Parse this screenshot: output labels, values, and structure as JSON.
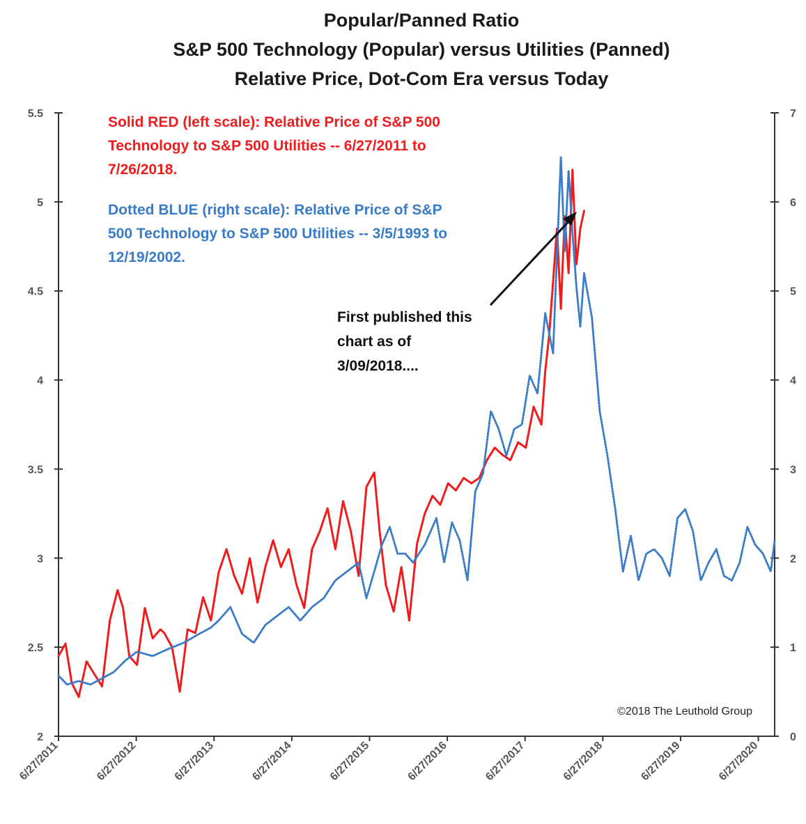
{
  "chart_data": {
    "type": "line",
    "title": [
      "Popular/Panned Ratio",
      "S&P 500 Technology (Popular) versus Utilities (Panned)",
      "Relative Price, Dot-Com Era versus Today"
    ],
    "y_left": {
      "ticks": [
        "5.5",
        "5",
        "4.5",
        "4",
        "3.5",
        "3",
        "2.5",
        "2"
      ],
      "ylim": [
        2,
        5.5
      ]
    },
    "y_right": {
      "ticks": [
        "7",
        "6",
        "5",
        "4",
        "3",
        "2",
        "1",
        "0"
      ],
      "ylim": [
        0,
        7
      ]
    },
    "x_ticks": [
      "6/27/2011",
      "6/27/2012",
      "6/27/2013",
      "6/27/2014",
      "6/27/2015",
      "6/27/2016",
      "6/27/2017",
      "6/27/2018",
      "6/27/2019",
      "6/27/2020"
    ],
    "xlim": [
      2011.49,
      2020.7
    ],
    "annotations": {
      "red_legend": [
        "Solid RED (left scale): Relative Price of S&P 500",
        "Technology to S&P 500 Utilities -- 6/27/2011 to",
        "7/26/2018."
      ],
      "blue_legend": [
        "Dotted BLUE (right scale): Relative Price of S&P",
        "500 Technology to S&P 500 Utilities -- 3/5/1993 to",
        "12/19/2002."
      ],
      "note": [
        "First published this",
        "chart as of",
        "3/09/2018...."
      ],
      "copyright": "©2018 The Leuthold Group"
    },
    "colors": {
      "red": "#ee1c1c",
      "blue": "#3a7bc8",
      "axis": "#333333"
    },
    "series": [
      {
        "style": "solid",
        "axis": "left",
        "color": "#ee1c1c",
        "x": [
          2011.49,
          2011.58,
          2011.66,
          2011.75,
          2011.85,
          2011.95,
          2012.05,
          2012.15,
          2012.25,
          2012.32,
          2012.4,
          2012.5,
          2012.6,
          2012.7,
          2012.8,
          2012.85,
          2012.95,
          2013.05,
          2013.15,
          2013.25,
          2013.35,
          2013.45,
          2013.55,
          2013.65,
          2013.75,
          2013.85,
          2013.95,
          2014.05,
          2014.15,
          2014.25,
          2014.35,
          2014.45,
          2014.55,
          2014.65,
          2014.75,
          2014.85,
          2014.95,
          2015.05,
          2015.15,
          2015.25,
          2015.35,
          2015.45,
          2015.55,
          2015.62,
          2015.7,
          2015.8,
          2015.9,
          2016.0,
          2016.1,
          2016.2,
          2016.3,
          2016.4,
          2016.5,
          2016.6,
          2016.7,
          2016.8,
          2016.9,
          2017.0,
          2017.1,
          2017.2,
          2017.3,
          2017.4,
          2017.5,
          2017.6,
          2017.7,
          2017.75,
          2017.8,
          2017.85,
          2017.9,
          2017.95,
          2018.0,
          2018.05,
          2018.1,
          2018.15,
          2018.2,
          2018.25
        ],
        "y": [
          2.45,
          2.52,
          2.3,
          2.22,
          2.42,
          2.35,
          2.28,
          2.65,
          2.82,
          2.72,
          2.45,
          2.4,
          2.72,
          2.55,
          2.6,
          2.58,
          2.5,
          2.25,
          2.6,
          2.58,
          2.78,
          2.65,
          2.92,
          3.05,
          2.9,
          2.8,
          3.0,
          2.75,
          2.95,
          3.1,
          2.95,
          3.05,
          2.85,
          2.72,
          3.05,
          3.15,
          3.28,
          3.05,
          3.32,
          3.15,
          2.9,
          3.4,
          3.48,
          3.15,
          2.85,
          2.7,
          2.95,
          2.65,
          3.08,
          3.25,
          3.35,
          3.3,
          3.42,
          3.38,
          3.45,
          3.42,
          3.45,
          3.55,
          3.62,
          3.58,
          3.55,
          3.65,
          3.62,
          3.85,
          3.75,
          4.05,
          4.25,
          4.55,
          4.85,
          4.4,
          4.92,
          4.6,
          5.18,
          4.65,
          4.85,
          4.95
        ]
      },
      {
        "style": "dotted",
        "axis": "right",
        "color": "#3a7bc8",
        "x": [
          2011.49,
          2011.6,
          2011.75,
          2011.9,
          2012.05,
          2012.2,
          2012.35,
          2012.5,
          2012.7,
          2012.9,
          2013.1,
          2013.3,
          2013.45,
          2013.55,
          2013.7,
          2013.85,
          2014.0,
          2014.15,
          2014.3,
          2014.45,
          2014.6,
          2014.75,
          2014.9,
          2015.05,
          2015.2,
          2015.35,
          2015.45,
          2015.55,
          2015.65,
          2015.75,
          2015.85,
          2015.95,
          2016.05,
          2016.2,
          2016.35,
          2016.45,
          2016.55,
          2016.65,
          2016.75,
          2016.85,
          2016.95,
          2017.05,
          2017.15,
          2017.25,
          2017.35,
          2017.45,
          2017.55,
          2017.65,
          2017.75,
          2017.85,
          2017.95,
          2018.0,
          2018.05,
          2018.1,
          2018.15,
          2018.2,
          2018.25,
          2018.35,
          2018.45,
          2018.55,
          2018.65,
          2018.75,
          2018.85,
          2018.95,
          2019.05,
          2019.15,
          2019.25,
          2019.35,
          2019.45,
          2019.55,
          2019.65,
          2019.75,
          2019.85,
          2019.95,
          2020.05,
          2020.15,
          2020.25,
          2020.35,
          2020.45,
          2020.55,
          2020.65,
          2020.7
        ],
        "y": [
          0.68,
          0.58,
          0.62,
          0.58,
          0.65,
          0.72,
          0.85,
          0.95,
          0.9,
          0.98,
          1.05,
          1.15,
          1.22,
          1.3,
          1.45,
          1.15,
          1.05,
          1.25,
          1.35,
          1.45,
          1.3,
          1.45,
          1.55,
          1.75,
          1.85,
          1.95,
          1.55,
          1.85,
          2.15,
          2.35,
          2.05,
          2.05,
          1.95,
          2.15,
          2.45,
          1.95,
          2.4,
          2.2,
          1.75,
          2.75,
          2.95,
          3.65,
          3.45,
          3.15,
          3.45,
          3.5,
          4.05,
          3.85,
          4.75,
          4.3,
          6.5,
          5.45,
          6.35,
          5.65,
          5.05,
          4.6,
          5.2,
          4.7,
          3.65,
          3.15,
          2.55,
          1.85,
          2.25,
          1.75,
          2.05,
          2.1,
          2.0,
          1.8,
          2.45,
          2.55,
          2.3,
          1.75,
          1.95,
          2.1,
          1.8,
          1.75,
          1.95,
          2.35,
          2.15,
          2.05,
          1.85,
          2.2
        ]
      }
    ]
  }
}
